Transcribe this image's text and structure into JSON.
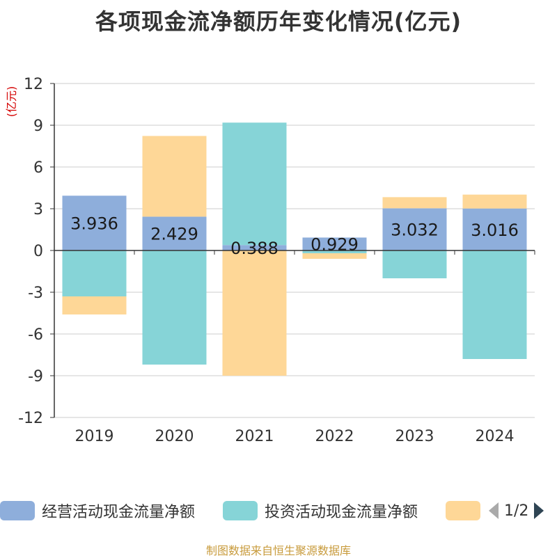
{
  "title": "各项现金流净额历年变化情况(亿元)",
  "footer": "制图数据来自恒生聚源数据库",
  "colors": {
    "operating": "#8eaedb",
    "investing": "#86d4d7",
    "financing": "#fed797",
    "axis": "#333333",
    "grid": "#cccccc",
    "unit": "#d40000"
  },
  "legend": {
    "items": [
      "经营活动现金流量净额",
      "投资活动现金流量净额",
      ""
    ],
    "pager": "1/2",
    "prev_icon": "triangle-left-icon",
    "next_icon": "triangle-right-icon"
  },
  "chart_data": {
    "type": "bar",
    "stacked": true,
    "unit_label": "(亿元)",
    "categories": [
      "2019",
      "2020",
      "2021",
      "2022",
      "2023",
      "2024"
    ],
    "ylim": [
      -12,
      12
    ],
    "yticks": [
      12,
      9,
      6,
      3,
      0,
      -3,
      -6,
      -9,
      -12
    ],
    "grid": true,
    "series": [
      {
        "name": "经营活动现金流量净额",
        "values": [
          3.936,
          2.429,
          0.388,
          0.929,
          3.032,
          3.016
        ],
        "labels": [
          "3.936",
          "2.429",
          "0.388",
          "0.929",
          "3.032",
          "3.016"
        ]
      },
      {
        "name": "投资活动现金流量净额",
        "values": [
          -3.3,
          -8.2,
          8.8,
          -0.2,
          -2.0,
          -7.8
        ]
      },
      {
        "name": "",
        "values": [
          -1.3,
          5.8,
          -9.0,
          -0.4,
          0.8,
          1.0
        ]
      }
    ]
  }
}
